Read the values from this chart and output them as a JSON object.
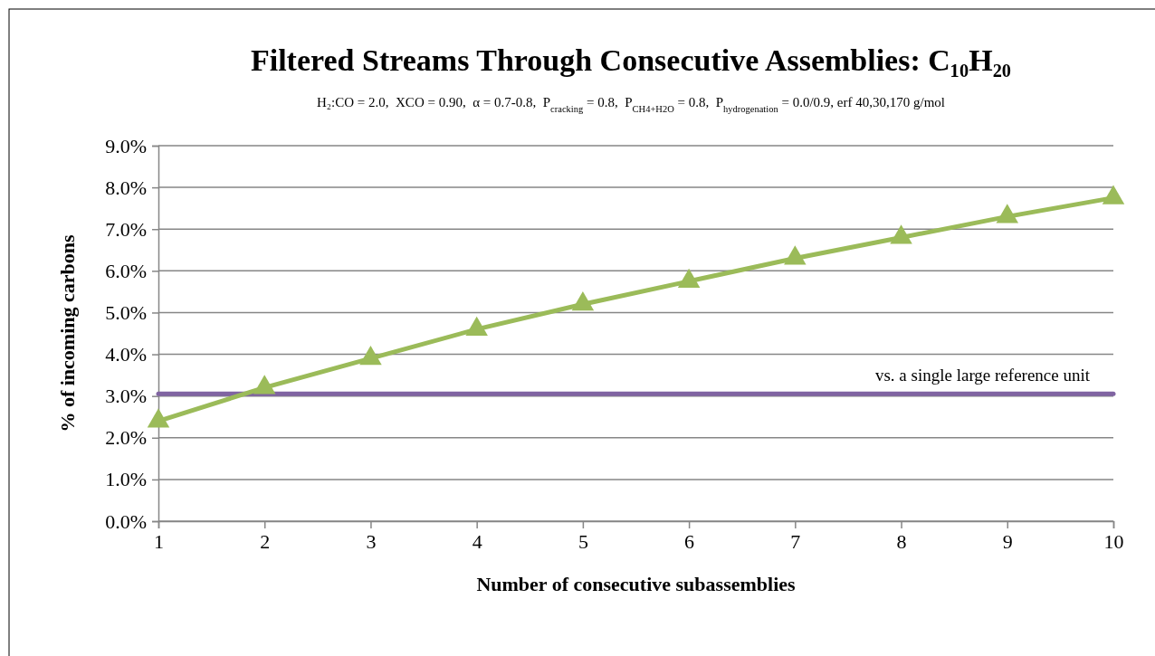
{
  "chart_data": {
    "type": "line",
    "title": "Filtered Streams Through Consecutive Assemblies: C₁₀H₂₀",
    "subtitle": "H₂:CO = 2.0,  XCO = 0.90,  α = 0.7-0.8,  P$_{cracking}$ = 0.8,  P$_{CH4+H2O}$ = 0.8,  P$_{hydrogenation}$ = 0.0/0.9, erf 40,30,170 g/mol",
    "xlabel": "Number of consecutive subassemblies",
    "ylabel": "% of incoming carbons",
    "x": [
      1,
      2,
      3,
      4,
      5,
      6,
      7,
      8,
      9,
      10
    ],
    "series": [
      {
        "color": "#9bbb59",
        "values": [
          2.4,
          3.2,
          3.9,
          4.6,
          5.2,
          5.75,
          6.3,
          6.8,
          7.3,
          7.75
        ]
      }
    ],
    "xlim": [
      1,
      10
    ],
    "xticks": [
      1,
      2,
      3,
      4,
      5,
      6,
      7,
      8,
      9,
      10
    ],
    "ylim": [
      0,
      9
    ],
    "yticks": [
      {
        "value": 0,
        "label": "0.0%"
      },
      {
        "value": 1,
        "label": "1.0%"
      },
      {
        "value": 2,
        "label": "2.0%"
      },
      {
        "value": 3,
        "label": "3.0%"
      },
      {
        "value": 4,
        "label": "4.0%"
      },
      {
        "value": 5,
        "label": "5.0%"
      },
      {
        "value": 6,
        "label": "6.0%"
      },
      {
        "value": 7,
        "label": "7.0%"
      },
      {
        "value": 8,
        "label": "8.0%"
      },
      {
        "value": 9,
        "label": "9.0%"
      }
    ],
    "ref_lines": [
      {
        "axis": "y",
        "value": 3.05,
        "label": "vs. a single large reference unit",
        "color": "#8064a2"
      }
    ],
    "grid": "y",
    "marker": "triangle",
    "line_style": "solid"
  }
}
